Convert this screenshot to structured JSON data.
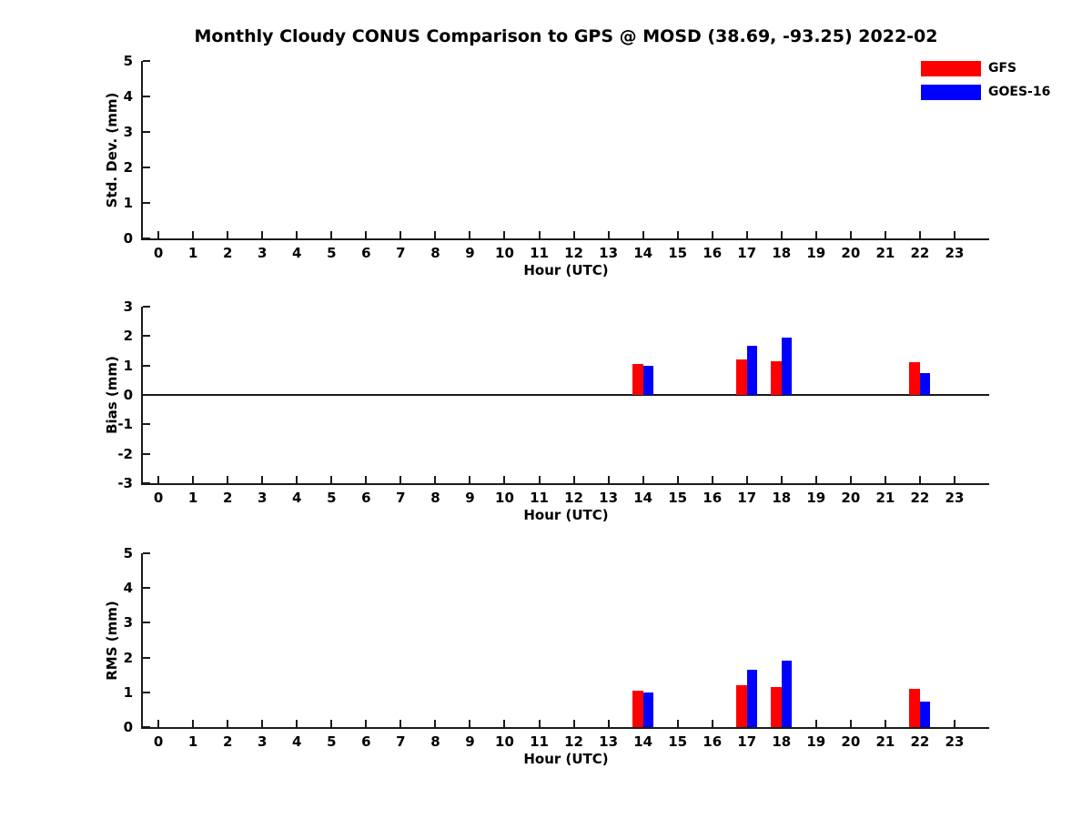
{
  "title": "Monthly Cloudy CONUS Comparison to GPS @ MOSD (38.69, -93.25) 2022-02",
  "legend": {
    "items": [
      {
        "label": "GFS",
        "color": "#ff0000"
      },
      {
        "label": "GOES-16",
        "color": "#0000ff"
      }
    ]
  },
  "axis_color": "#1a1a1a",
  "chart_data": [
    {
      "type": "bar",
      "panel": "std-dev",
      "ylabel": "Std. Dev. (mm)",
      "xlabel": "Hour (UTC)",
      "ylim": [
        0,
        5
      ],
      "yticks": [
        0,
        1,
        2,
        3,
        4,
        5
      ],
      "xlim": [
        -0.45,
        24.0
      ],
      "xticks": [
        0,
        1,
        2,
        3,
        4,
        5,
        6,
        7,
        8,
        9,
        10,
        11,
        12,
        13,
        14,
        15,
        16,
        17,
        18,
        19,
        20,
        21,
        22,
        23
      ],
      "grid": false,
      "legend_position": "top-right-outside",
      "categories": [
        14,
        17,
        18,
        22
      ],
      "series": [
        {
          "name": "GFS",
          "color": "#ff0000",
          "values": [
            0,
            0,
            0,
            0
          ]
        },
        {
          "name": "GOES-16",
          "color": "#0000ff",
          "values": [
            0,
            0,
            0,
            0
          ]
        }
      ],
      "note": "no visible bars in this panel"
    },
    {
      "type": "bar",
      "panel": "bias",
      "ylabel": "Bias (mm)",
      "xlabel": "Hour (UTC)",
      "ylim": [
        -3,
        3
      ],
      "yticks": [
        3,
        2,
        1,
        0,
        -1,
        -2,
        -3
      ],
      "xlim": [
        -0.45,
        24.0
      ],
      "xticks": [
        0,
        1,
        2,
        3,
        4,
        5,
        6,
        7,
        8,
        9,
        10,
        11,
        12,
        13,
        14,
        15,
        16,
        17,
        18,
        19,
        20,
        21,
        22,
        23
      ],
      "grid": false,
      "zero_line": true,
      "categories": [
        14,
        17,
        18,
        22
      ],
      "series": [
        {
          "name": "GFS",
          "color": "#ff0000",
          "values": [
            1.05,
            1.2,
            1.15,
            1.1
          ]
        },
        {
          "name": "GOES-16",
          "color": "#0000ff",
          "values": [
            0.98,
            1.67,
            1.95,
            0.73
          ]
        }
      ]
    },
    {
      "type": "bar",
      "panel": "rms",
      "ylabel": "RMS (mm)",
      "xlabel": "Hour (UTC)",
      "ylim": [
        0,
        5
      ],
      "yticks": [
        0,
        1,
        2,
        3,
        4,
        5
      ],
      "xlim": [
        -0.45,
        24.0
      ],
      "xticks": [
        0,
        1,
        2,
        3,
        4,
        5,
        6,
        7,
        8,
        9,
        10,
        11,
        12,
        13,
        14,
        15,
        16,
        17,
        18,
        19,
        20,
        21,
        22,
        23
      ],
      "grid": false,
      "categories": [
        14,
        17,
        18,
        22
      ],
      "series": [
        {
          "name": "GFS",
          "color": "#ff0000",
          "values": [
            1.05,
            1.2,
            1.15,
            1.1
          ]
        },
        {
          "name": "GOES-16",
          "color": "#0000ff",
          "values": [
            1.0,
            1.65,
            1.92,
            0.74
          ]
        }
      ]
    }
  ]
}
